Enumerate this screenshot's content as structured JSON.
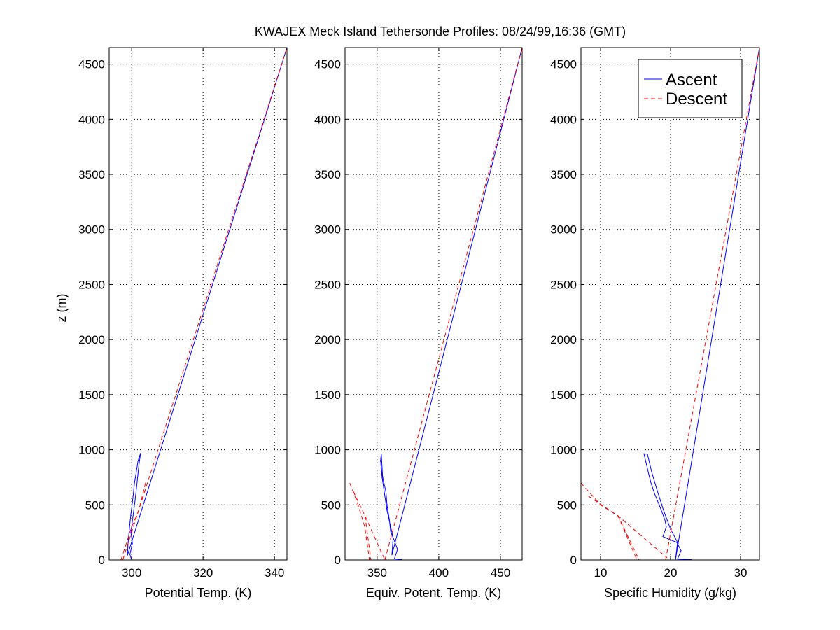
{
  "figure": {
    "title": "KWAJEX Meck Island Tethersonde Profiles: 08/24/99,16:36 (GMT)",
    "ylabel": "z (m)",
    "legend": [
      {
        "name": "Ascent",
        "color": "#0000ff",
        "style": "solid"
      },
      {
        "name": "Descent",
        "color": "#ff0000",
        "style": "dashed"
      }
    ],
    "legend_placement": "top-right of third panel",
    "grid": true
  },
  "chart_data": [
    {
      "type": "line",
      "xlabel": "Potential Temp. (K)",
      "ylabel": "z (m)",
      "xlim": [
        293.7,
        343.5
      ],
      "ylim": [
        0,
        4650
      ],
      "xticks": [
        300,
        320,
        340
      ],
      "yticks": [
        0,
        500,
        1000,
        1500,
        2000,
        2500,
        3000,
        3500,
        4000,
        4500
      ],
      "series": [
        {
          "name": "Ascent",
          "color": "#0000ff",
          "segments": [
            [
              [
                300,
                0
              ],
              [
                299.5,
                50
              ],
              [
                300.2,
                150
              ],
              [
                299.8,
                250
              ],
              [
                300.3,
                380
              ],
              [
                301,
                550
              ],
              [
                301.5,
                700
              ],
              [
                302,
                850
              ],
              [
                302.5,
                970
              ],
              [
                301.8,
                900
              ],
              [
                300.8,
                700
              ],
              [
                300.3,
                550
              ],
              [
                299.8,
                420
              ],
              [
                299.4,
                300
              ],
              [
                299,
                150
              ],
              [
                298.8,
                40
              ],
              [
                343.5,
                4650
              ]
            ]
          ]
        },
        {
          "name": "Descent",
          "color": "#ff0000",
          "segments": [
            [
              [
                303.9,
                700
              ],
              [
                302,
                450
              ],
              [
                300,
                300
              ],
              [
                298.5,
                150
              ],
              [
                297,
                0
              ]
            ],
            [
              [
                297.5,
                0
              ],
              [
                343.5,
                4650
              ]
            ]
          ]
        }
      ]
    },
    {
      "type": "line",
      "xlabel": "Equiv. Potent. Temp. (K)",
      "xlim": [
        324,
        467.6
      ],
      "ylim": [
        0,
        4650
      ],
      "xticks": [
        350,
        400,
        450
      ],
      "yticks": [
        0,
        500,
        1000,
        1500,
        2000,
        2500,
        3000,
        3500,
        4000,
        4500
      ],
      "series": [
        {
          "name": "Ascent",
          "color": "#0000ff",
          "segments": [
            [
              [
                364.8,
                0
              ],
              [
                370,
                5
              ],
              [
                364,
                10
              ],
              [
                366.5,
                95
              ],
              [
                363.8,
                180
              ],
              [
                361,
                254
              ],
              [
                360,
                362
              ],
              [
                358,
                500
              ],
              [
                357.2,
                615
              ],
              [
                355.5,
                700
              ],
              [
                354.4,
                761
              ],
              [
                353.4,
                964
              ],
              [
                352.8,
                900
              ],
              [
                354,
                750
              ],
              [
                356,
                600
              ],
              [
                358,
                450
              ],
              [
                361,
                300
              ],
              [
                363,
                200
              ],
              [
                362,
                44
              ],
              [
                467.6,
                4650
              ]
            ]
          ]
        },
        {
          "name": "Descent",
          "color": "#ff0000",
          "segments": [
            [
              [
                327.8,
                698
              ],
              [
                334,
                520
              ],
              [
                340,
                300
              ],
              [
                343.8,
                0
              ]
            ],
            [
              [
                330.7,
                622
              ],
              [
                340.2,
                400
              ],
              [
                356.3,
                0
              ]
            ],
            [
              [
                340.2,
                400
              ],
              [
                345,
                0
              ]
            ],
            [
              [
                356.3,
                0
              ],
              [
                467.6,
                4650
              ]
            ]
          ]
        }
      ]
    },
    {
      "type": "line",
      "xlabel": "Specific Humidity (g/kg)",
      "xlim": [
        7.2,
        32.7
      ],
      "ylim": [
        0,
        4650
      ],
      "xticks": [
        10,
        20,
        30
      ],
      "yticks": [
        0,
        500,
        1000,
        1500,
        2000,
        2500,
        3000,
        3500,
        4000,
        4500
      ],
      "series": [
        {
          "name": "Ascent",
          "color": "#0000ff",
          "segments": [
            [
              [
                20.9,
                0
              ],
              [
                23,
                3
              ],
              [
                21,
                8
              ],
              [
                21.5,
                85
              ],
              [
                20.9,
                159
              ],
              [
                18.9,
                212
              ],
              [
                19.4,
                300
              ],
              [
                19.2,
                362
              ],
              [
                18.5,
                480
              ],
              [
                17.7,
                605
              ],
              [
                17.2,
                700
              ],
              [
                16.9,
                775
              ],
              [
                16.2,
                964
              ],
              [
                16.7,
                960
              ],
              [
                17.3,
                800
              ],
              [
                18,
                650
              ],
              [
                19,
                450
              ],
              [
                20,
                280
              ],
              [
                21,
                160
              ],
              [
                20.7,
                0
              ],
              [
                32.7,
                4650
              ]
            ]
          ]
        },
        {
          "name": "Descent",
          "color": "#ff0000",
          "segments": [
            [
              [
                7.2,
                698
              ],
              [
                10,
                500
              ],
              [
                12.5,
                400
              ],
              [
                19.5,
                20
              ]
            ],
            [
              [
                8.2,
                582
              ],
              [
                12.5,
                400
              ],
              [
                15.5,
                0
              ]
            ],
            [
              [
                12.5,
                400
              ],
              [
                15.2,
                0
              ]
            ],
            [
              [
                19.3,
                0
              ],
              [
                32.7,
                4650
              ]
            ]
          ]
        }
      ]
    }
  ]
}
